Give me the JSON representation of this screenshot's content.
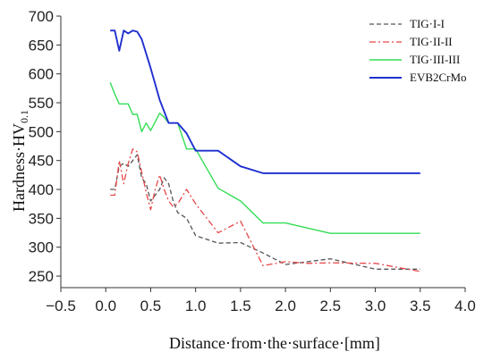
{
  "chart_data": {
    "type": "line",
    "title": "",
    "xlabel": "Distance·from·the·surface·[mm]",
    "ylabel_main": "Hardness·HV",
    "ylabel_sub": "0.1",
    "xlim": [
      -0.5,
      4.0
    ],
    "ylim": [
      230,
      700
    ],
    "xticks": [
      "−0.5",
      "0.0",
      "0.5",
      "1.0",
      "1.5",
      "2.0",
      "2.5",
      "3.0",
      "3.5",
      "4.0"
    ],
    "xtick_values": [
      -0.5,
      0.0,
      0.5,
      1.0,
      1.5,
      2.0,
      2.5,
      3.0,
      3.5,
      4.0
    ],
    "yticks": [
      "250",
      "300",
      "350",
      "400",
      "450",
      "500",
      "550",
      "600",
      "650",
      "700"
    ],
    "ytick_values": [
      250,
      300,
      350,
      400,
      450,
      500,
      550,
      600,
      650,
      700
    ],
    "grid": false,
    "legend_position": "top-right",
    "series": [
      {
        "name": "TIG·I-I",
        "color": "#555555",
        "dash": "dashed",
        "x": [
          0.05,
          0.1,
          0.15,
          0.2,
          0.25,
          0.3,
          0.35,
          0.4,
          0.45,
          0.5,
          0.55,
          0.6,
          0.65,
          0.7,
          0.75,
          0.8,
          0.9,
          1.0,
          1.25,
          1.5,
          1.75,
          2.0,
          2.25,
          2.5,
          3.0,
          3.5
        ],
        "y": [
          400,
          400,
          440,
          445,
          440,
          450,
          460,
          420,
          410,
          380,
          390,
          400,
          420,
          410,
          380,
          360,
          350,
          320,
          307,
          308,
          290,
          270,
          275,
          280,
          262,
          262
        ]
      },
      {
        "name": "TIG·II-II",
        "color": "#e8474a",
        "dash": "dashdot",
        "x": [
          0.05,
          0.1,
          0.15,
          0.2,
          0.25,
          0.3,
          0.35,
          0.4,
          0.45,
          0.5,
          0.55,
          0.6,
          0.65,
          0.7,
          0.75,
          0.8,
          0.9,
          1.0,
          1.25,
          1.5,
          1.75,
          2.0,
          2.25,
          2.5,
          3.0,
          3.5
        ],
        "y": [
          390,
          390,
          450,
          410,
          445,
          470,
          465,
          430,
          395,
          365,
          400,
          425,
          400,
          380,
          370,
          375,
          400,
          375,
          325,
          345,
          268,
          275,
          272,
          273,
          272,
          258
        ]
      },
      {
        "name": "TIG·III-III",
        "color": "#33dd55",
        "dash": "solid",
        "x": [
          0.05,
          0.1,
          0.15,
          0.25,
          0.3,
          0.35,
          0.4,
          0.45,
          0.5,
          0.55,
          0.6,
          0.65,
          0.7,
          0.75,
          0.8,
          0.9,
          1.0,
          1.25,
          1.5,
          1.75,
          2.0,
          2.5,
          3.0,
          3.5
        ],
        "y": [
          585,
          565,
          548,
          548,
          530,
          530,
          500,
          515,
          502,
          517,
          532,
          525,
          515,
          515,
          515,
          470,
          470,
          402,
          380,
          342,
          342,
          324,
          324,
          324
        ]
      },
      {
        "name": "EVB2CrMo",
        "color": "#1f2fcf",
        "dash": "solid",
        "x": [
          0.05,
          0.1,
          0.15,
          0.2,
          0.25,
          0.3,
          0.35,
          0.4,
          0.5,
          0.6,
          0.7,
          0.8,
          0.9,
          1.0,
          1.25,
          1.5,
          1.75,
          2.0,
          2.5,
          3.0,
          3.5
        ],
        "y": [
          675,
          675,
          640,
          675,
          670,
          675,
          673,
          660,
          610,
          555,
          515,
          515,
          497,
          467,
          467,
          440,
          428,
          428,
          428,
          428,
          428
        ]
      }
    ]
  }
}
